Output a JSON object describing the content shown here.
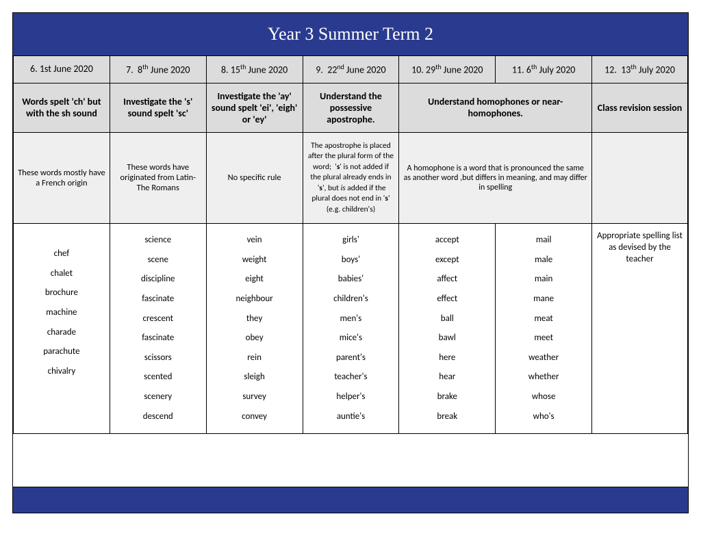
{
  "title": "Year 3 Summer Term 2",
  "colors": {
    "header_bg": "#2a3b8f",
    "header_text": "#ffffff",
    "grey1": "#dcdcdc",
    "grey2": "#efefef",
    "border": "#000000"
  },
  "columns": [
    {
      "date": "6. 1st June 2020",
      "topic": "Words spelt 'ch' but with the sh sound",
      "desc": "These words mostly have a French origin",
      "words": [
        "chef",
        "chalet",
        "brochure",
        "machine",
        "charade",
        "parachute",
        "chivalry"
      ]
    },
    {
      "date": "7.  8th June 2020",
      "sup": "th",
      "topic": "Investigate the 's' sound spelt 'sc'",
      "desc": "These words have originated from Latin- The Romans",
      "words": [
        "science",
        "scene",
        "discipline",
        "fascinate",
        "crescent",
        "fascinate",
        "scissors",
        "scented",
        "scenery",
        "descend"
      ]
    },
    {
      "date": "8. 15th June 2020",
      "sup": "th",
      "topic": "Investigate the 'ay' sound spelt 'ei', 'eigh' or 'ey'",
      "desc": "No specific rule",
      "words": [
        "vein",
        "weight",
        "eight",
        "neighbour",
        "they",
        "obey",
        "rein",
        "sleigh",
        "survey",
        "convey"
      ]
    },
    {
      "date": "9.  22nd June 2020",
      "sup": "nd",
      "topic": "Understand the possessive apostrophe.",
      "desc": "The apostrophe is placed after the plural form of the word;  's' is not added if the plural already ends in  's', but is added if the plural does not end in 's' (e.g. children's)",
      "words": [
        "girls'",
        "boys'",
        "babies'",
        "children's",
        "men's",
        "mice's",
        "parent's",
        "teacher's",
        "helper's",
        "auntie's"
      ]
    },
    {
      "date": "10. 29th June 2020",
      "sup": "th",
      "topic": "Understand homophones or near-homophones.",
      "desc": "A homophone is a word that is pronounced the same as another word ,but differs in meaning, and may differ in spelling",
      "words": [
        "accept",
        "except",
        "affect",
        "effect",
        "ball",
        "bawl",
        "here",
        "hear",
        "brake",
        "break"
      ]
    },
    {
      "date": "11. 6th July 2020",
      "sup": "th",
      "words": [
        "mail",
        "male",
        "main",
        "mane",
        "meat",
        "meet",
        "weather",
        "whether",
        "whose",
        "who's"
      ]
    },
    {
      "date": "12.  13th July 2020",
      "sup": "th",
      "topic": "Class revision session",
      "desc": "",
      "words_note": "Appropriate spelling list as devised by the teacher"
    }
  ]
}
